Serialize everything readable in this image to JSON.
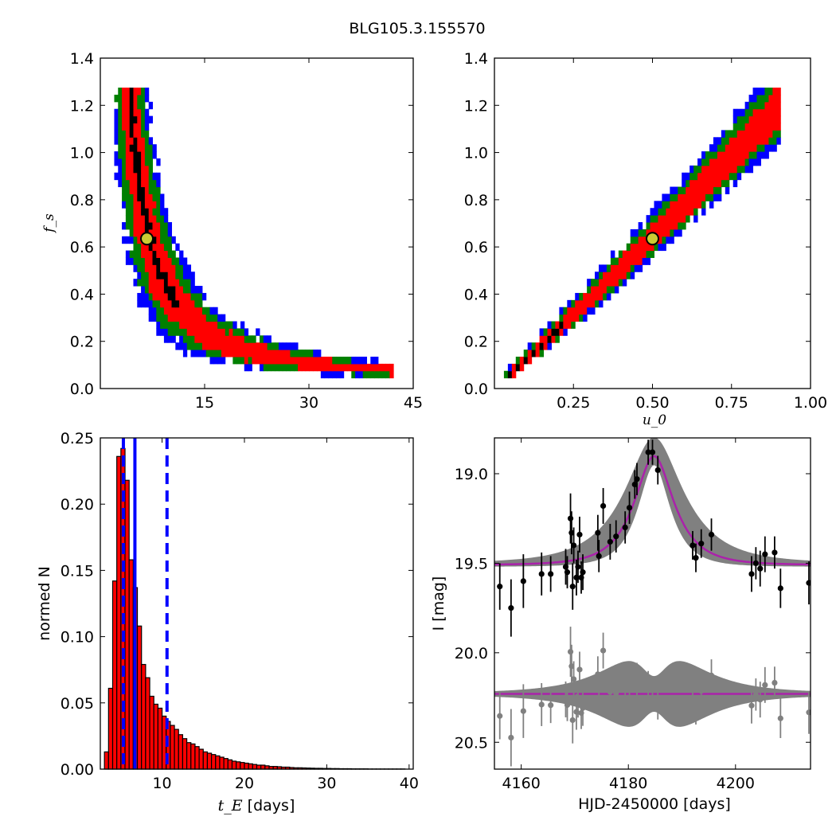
{
  "figure": {
    "title": "BLG105.3.155570"
  },
  "colors": {
    "sigma1": "#ff0000",
    "sigma2": "#008000",
    "sigma3": "#0000ff",
    "best": "#000000",
    "marker_face": "#cccc33",
    "hist_fill": "#ff0000",
    "vline": "#0000ff",
    "model": "#aa22aa",
    "band": "#808080",
    "data": "#000000",
    "resid": "#808080"
  },
  "chart_data": [
    {
      "type": "heatmap",
      "name": "tE vs fs",
      "ylabel": "f_s",
      "xlim": [
        0,
        45
      ],
      "ylim": [
        0,
        1.4
      ],
      "xticks": [
        "15",
        "30",
        "45"
      ],
      "yticks": [
        "0.0",
        "0.2",
        "0.4",
        "0.6",
        "0.8",
        "1.0",
        "1.2",
        "1.4"
      ],
      "best_fit": {
        "x": 6.7,
        "y": 0.635
      },
      "relation": "tE*fs power law",
      "bands_note": "confidence region colors: black best, red 1-sigma, green 2-sigma, blue 3-sigma"
    },
    {
      "type": "heatmap",
      "name": "u0 vs fs",
      "xlabel": "u_0",
      "xlim": [
        0,
        1.0
      ],
      "ylim": [
        0,
        1.4
      ],
      "xticks": [
        "0.25",
        "0.50",
        "0.75",
        "1.00"
      ],
      "yticks": [
        "0.0",
        "0.2",
        "0.4",
        "0.6",
        "0.8",
        "1.0",
        "1.2",
        "1.4"
      ],
      "best_fit": {
        "x": 0.5,
        "y": 0.635
      }
    },
    {
      "type": "bar",
      "name": "tE histogram",
      "xlabel": "t_E",
      "xlabel_suffix": " [days]",
      "ylabel": "normed N",
      "xlim": [
        2.5,
        40.5
      ],
      "ylim": [
        0,
        0.25
      ],
      "xticks": [
        "10",
        "20",
        "30",
        "40"
      ],
      "yticks": [
        "0.00",
        "0.05",
        "0.10",
        "0.15",
        "0.20",
        "0.25"
      ],
      "bin_start": 3.0,
      "bin_width": 0.5,
      "values": [
        0.013,
        0.061,
        0.142,
        0.236,
        0.242,
        0.218,
        0.158,
        0.137,
        0.108,
        0.079,
        0.069,
        0.055,
        0.049,
        0.046,
        0.04,
        0.036,
        0.033,
        0.03,
        0.026,
        0.023,
        0.02,
        0.019,
        0.017,
        0.015,
        0.013,
        0.012,
        0.011,
        0.01,
        0.009,
        0.008,
        0.007,
        0.006,
        0.0055,
        0.005,
        0.0045,
        0.004,
        0.0035,
        0.003,
        0.003,
        0.0025,
        0.002,
        0.002,
        0.0018,
        0.0015,
        0.0015,
        0.0012,
        0.001,
        0.001,
        0.0009,
        0.0008,
        0.0007,
        0.0006,
        0.0006,
        0.0005,
        0.0005,
        0.0004,
        0.0004,
        0.0003,
        0.0003,
        0.0003,
        0.0002,
        0.0002,
        0.0002,
        0.0002,
        0.0001,
        0.0001,
        0.0001,
        0.0001,
        0.0001,
        0.0001,
        0.0001,
        0.0001,
        0.0001
      ],
      "median": 6.7,
      "interval": [
        5.3,
        10.6
      ]
    },
    {
      "type": "scatter",
      "name": "light curve",
      "xlabel": "HJD-2450000 [days]",
      "ylabel": "I [mag]",
      "xlim": [
        4155,
        4214
      ],
      "ylim": [
        20.65,
        18.8
      ],
      "xticks": [
        "4160",
        "4180",
        "4200"
      ],
      "yticks": [
        "19.0",
        "19.5",
        "20.0",
        "20.5"
      ],
      "model": {
        "t0": 4184.8,
        "tE": 6.7,
        "u0": 0.5,
        "fs": 0.635,
        "base": 19.51
      },
      "residual_offset": 20.23,
      "points": [
        {
          "t": 4156.0,
          "mag": 19.63,
          "err": 0.13
        },
        {
          "t": 4158.1,
          "mag": 19.75,
          "err": 0.16
        },
        {
          "t": 4160.4,
          "mag": 19.6,
          "err": 0.15
        },
        {
          "t": 4163.8,
          "mag": 19.56,
          "err": 0.12
        },
        {
          "t": 4165.5,
          "mag": 19.56,
          "err": 0.1
        },
        {
          "t": 4168.3,
          "mag": 19.52,
          "err": 0.1
        },
        {
          "t": 4168.6,
          "mag": 19.55,
          "err": 0.09
        },
        {
          "t": 4169.2,
          "mag": 19.25,
          "err": 0.14
        },
        {
          "t": 4169.4,
          "mag": 19.33,
          "err": 0.12
        },
        {
          "t": 4169.6,
          "mag": 19.63,
          "err": 0.13
        },
        {
          "t": 4169.8,
          "mag": 19.4,
          "err": 0.1
        },
        {
          "t": 4170.3,
          "mag": 19.58,
          "err": 0.1
        },
        {
          "t": 4170.6,
          "mag": 19.52,
          "err": 0.09
        },
        {
          "t": 4170.9,
          "mag": 19.34,
          "err": 0.1
        },
        {
          "t": 4171.2,
          "mag": 19.58,
          "err": 0.09
        },
        {
          "t": 4171.5,
          "mag": 19.55,
          "err": 0.1
        },
        {
          "t": 4174.3,
          "mag": 19.33,
          "err": 0.1
        },
        {
          "t": 4174.5,
          "mag": 19.46,
          "err": 0.09
        },
        {
          "t": 4175.3,
          "mag": 19.18,
          "err": 0.1
        },
        {
          "t": 4176.6,
          "mag": 19.38,
          "err": 0.1
        },
        {
          "t": 4177.7,
          "mag": 19.35,
          "err": 0.09
        },
        {
          "t": 4179.4,
          "mag": 19.3,
          "err": 0.09
        },
        {
          "t": 4180.2,
          "mag": 19.19,
          "err": 0.09
        },
        {
          "t": 4181.2,
          "mag": 19.06,
          "err": 0.08
        },
        {
          "t": 4181.6,
          "mag": 19.03,
          "err": 0.09
        },
        {
          "t": 4183.7,
          "mag": 18.88,
          "err": 0.07
        },
        {
          "t": 4184.5,
          "mag": 18.88,
          "err": 0.07
        },
        {
          "t": 4185.5,
          "mag": 18.98,
          "err": 0.08
        },
        {
          "t": 4192.0,
          "mag": 19.4,
          "err": 0.08
        },
        {
          "t": 4192.6,
          "mag": 19.47,
          "err": 0.08
        },
        {
          "t": 4193.6,
          "mag": 19.39,
          "err": 0.08
        },
        {
          "t": 4195.5,
          "mag": 19.34,
          "err": 0.09
        },
        {
          "t": 4203.0,
          "mag": 19.56,
          "err": 0.1
        },
        {
          "t": 4203.8,
          "mag": 19.5,
          "err": 0.09
        },
        {
          "t": 4204.6,
          "mag": 19.53,
          "err": 0.1
        },
        {
          "t": 4205.5,
          "mag": 19.45,
          "err": 0.1
        },
        {
          "t": 4207.3,
          "mag": 19.44,
          "err": 0.09
        },
        {
          "t": 4208.4,
          "mag": 19.64,
          "err": 0.11
        },
        {
          "t": 4213.7,
          "mag": 19.61,
          "err": 0.12
        }
      ]
    }
  ]
}
